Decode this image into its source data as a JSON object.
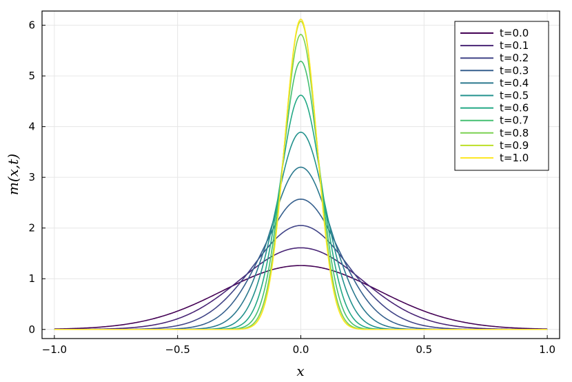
{
  "chart_data": {
    "type": "line",
    "xlabel": "x",
    "ylabel": "m(x,t)",
    "xlim": [
      -1.05,
      1.05
    ],
    "ylim": [
      -0.18,
      6.28
    ],
    "xticks": [
      -1.0,
      -0.5,
      0.0,
      0.5,
      1.0
    ],
    "xtick_labels": [
      "−1.0",
      "−0.5",
      "0.0",
      "0.5",
      "1.0"
    ],
    "yticks": [
      0,
      1,
      2,
      3,
      4,
      5,
      6
    ],
    "ytick_labels": [
      "0",
      "1",
      "2",
      "3",
      "4",
      "5",
      "6"
    ],
    "grid": true,
    "legend_position": "top-right",
    "shape": "gaussian",
    "x_range": [
      -1.0,
      1.0
    ],
    "series": [
      {
        "name": "t=0.0",
        "color": "#440154",
        "peak": 1.26
      },
      {
        "name": "t=0.1",
        "color": "#482475",
        "peak": 1.61
      },
      {
        "name": "t=0.2",
        "color": "#414487",
        "peak": 2.05
      },
      {
        "name": "t=0.3",
        "color": "#355f8d",
        "peak": 2.57
      },
      {
        "name": "t=0.4",
        "color": "#2a788e",
        "peak": 3.2
      },
      {
        "name": "t=0.5",
        "color": "#21918c",
        "peak": 3.89
      },
      {
        "name": "t=0.6",
        "color": "#22a884",
        "peak": 4.62
      },
      {
        "name": "t=0.7",
        "color": "#44bf70",
        "peak": 5.29
      },
      {
        "name": "t=0.8",
        "color": "#7ad151",
        "peak": 5.82
      },
      {
        "name": "t=0.9",
        "color": "#bddf26",
        "peak": 6.08
      },
      {
        "name": "t=1.0",
        "color": "#fde725",
        "peak": 6.12
      }
    ]
  }
}
